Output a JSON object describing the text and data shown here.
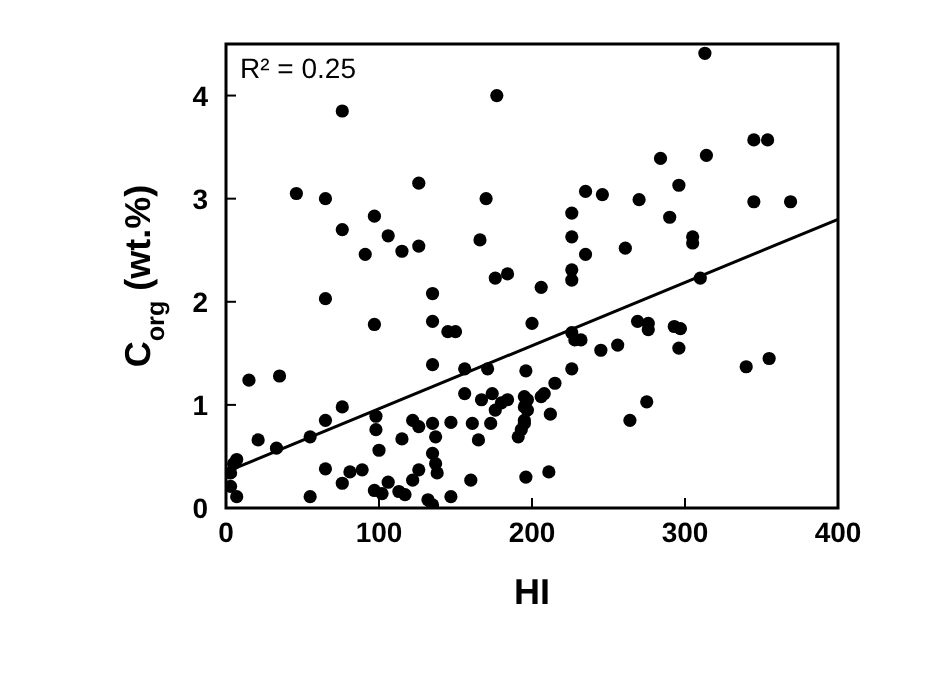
{
  "chart_data": {
    "type": "scatter",
    "xlabel": "HI",
    "ylabel": "C$_{org}$ (wt.%)",
    "annotations": [
      "R² = 0.25"
    ],
    "xlim": [
      0,
      400
    ],
    "xticks": [
      0,
      100,
      200,
      300,
      400
    ],
    "ylim": [
      0,
      4.5
    ],
    "yticks": [
      0,
      1,
      2,
      3,
      4
    ],
    "grid": false,
    "series": [
      {
        "color": "#000000",
        "marker": "circle",
        "x": [
          76,
          177,
          46,
          65,
          126,
          170,
          76,
          97,
          106,
          91,
          115,
          126,
          166,
          176,
          184,
          313,
          345,
          354,
          284,
          314,
          296,
          235,
          246,
          270,
          290,
          345,
          369,
          226,
          226,
          305,
          305,
          235,
          261,
          226,
          135,
          65,
          97,
          135,
          145,
          150,
          200,
          15,
          35,
          135,
          156,
          171,
          196,
          76,
          65,
          55,
          21,
          33,
          65,
          55,
          3,
          5,
          3,
          7,
          7,
          76,
          81,
          89,
          98,
          98,
          100,
          97,
          102,
          106,
          113,
          117,
          122,
          126,
          126,
          122,
          115,
          132,
          135,
          135,
          137,
          135,
          137,
          138,
          147,
          147,
          161,
          165,
          160,
          167,
          174,
          176,
          173,
          180,
          184,
          197,
          195,
          191,
          197,
          196,
          156,
          226,
          206,
          226,
          232,
          228,
          226,
          245,
          256,
          269,
          276,
          276,
          293,
          297,
          296,
          310,
          340,
          355,
          195,
          195,
          195,
          193,
          208,
          215,
          206,
          212,
          264,
          275,
          211
        ],
        "values": [
          3.85,
          4.0,
          3.05,
          3.0,
          3.15,
          3.0,
          2.7,
          2.83,
          2.64,
          2.46,
          2.49,
          2.54,
          2.6,
          2.23,
          2.27,
          4.41,
          3.57,
          3.57,
          3.39,
          3.42,
          3.13,
          3.07,
          3.04,
          2.99,
          2.82,
          2.97,
          2.97,
          2.86,
          2.63,
          2.63,
          2.57,
          2.46,
          2.52,
          2.31,
          2.08,
          2.03,
          1.78,
          1.81,
          1.71,
          1.71,
          1.79,
          1.24,
          1.28,
          1.39,
          1.35,
          1.35,
          1.33,
          0.98,
          0.85,
          0.69,
          0.66,
          0.58,
          0.38,
          0.11,
          0.34,
          0.43,
          0.21,
          0.11,
          0.47,
          0.24,
          0.35,
          0.37,
          0.89,
          0.76,
          0.56,
          0.17,
          0.14,
          0.25,
          0.16,
          0.13,
          0.27,
          0.37,
          0.79,
          0.85,
          0.67,
          0.08,
          0.03,
          0.82,
          0.69,
          0.53,
          0.43,
          0.34,
          0.83,
          0.11,
          0.82,
          0.66,
          0.27,
          1.05,
          1.11,
          0.95,
          0.82,
          1.02,
          1.05,
          1.05,
          0.82,
          0.69,
          0.95,
          0.3,
          1.11,
          2.21,
          2.14,
          1.7,
          1.63,
          1.63,
          1.35,
          1.53,
          1.58,
          1.81,
          1.79,
          1.73,
          1.76,
          1.74,
          1.55,
          2.23,
          1.37,
          1.45,
          1.08,
          0.98,
          0.85,
          0.76,
          1.11,
          1.21,
          1.08,
          0.91,
          0.85,
          1.03,
          0.35
        ]
      },
      {
        "type": "line",
        "color": "#000000",
        "marker": "none",
        "line_style": "solid",
        "x": [
          0,
          400
        ],
        "values": [
          0.35,
          2.8
        ]
      }
    ]
  }
}
